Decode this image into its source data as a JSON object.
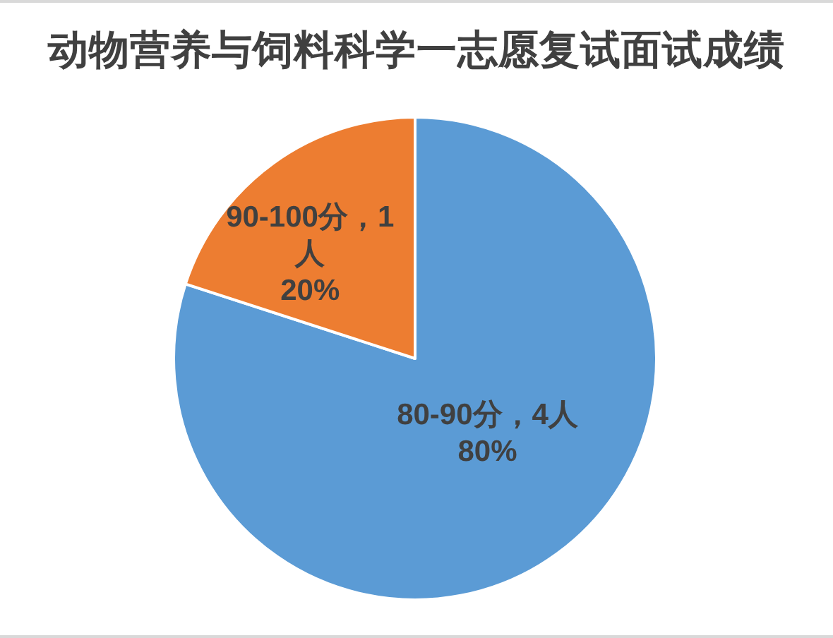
{
  "chart_data": {
    "type": "pie",
    "title": "动物营养与饲料科学一志愿复试面试成绩",
    "categories": [
      "80-90分，4人",
      "90-100分，1人"
    ],
    "values": [
      80,
      20
    ],
    "colors": [
      "#5b9bd5",
      "#ed7d31"
    ],
    "value_labels": [
      "80%",
      "20%"
    ]
  }
}
